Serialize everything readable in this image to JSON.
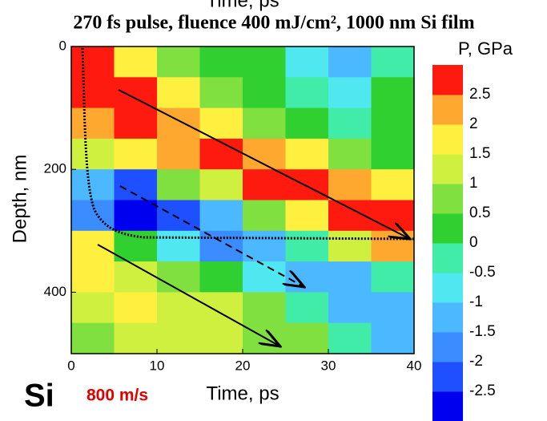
{
  "chart_data": {
    "type": "contour",
    "top_label": "Time, ps",
    "title": "270 fs pulse, fluence 400 mJ/cm², 1000 nm Si film",
    "x_label": "Time, ps",
    "y_label": "Depth, nm",
    "xlim": [
      0,
      40
    ],
    "xticks": [
      0,
      10,
      20,
      30,
      40
    ],
    "ylim": [
      0,
      500
    ],
    "yticks": [
      0,
      200,
      400
    ],
    "y_inverted": true,
    "x": [
      2.5,
      7.5,
      12.5,
      17.5,
      22.5,
      27.5,
      32.5,
      37.5
    ],
    "y": [
      25,
      75,
      125,
      175,
      225,
      275,
      325,
      375,
      425,
      475
    ],
    "z": [
      [
        2.8,
        1.5,
        0.5,
        0.3,
        0,
        -1,
        -1.5,
        -0.5
      ],
      [
        2.8,
        2.6,
        1.5,
        0.5,
        0,
        -0.5,
        -1,
        0
      ],
      [
        2.3,
        2.5,
        2.2,
        1.5,
        0.5,
        0,
        -0.3,
        0
      ],
      [
        1.2,
        1.5,
        2.0,
        2.6,
        2.3,
        1.5,
        0.5,
        0.3
      ],
      [
        -1.5,
        -2.2,
        0.5,
        1.2,
        2.6,
        2.7,
        2.3,
        1.5
      ],
      [
        -2.0,
        -2.6,
        -2.4,
        -1.5,
        0.5,
        1.5,
        2.7,
        2.8
      ],
      [
        1.5,
        0.3,
        -1.0,
        -1.8,
        -1.5,
        -0.5,
        1.0,
        2.2
      ],
      [
        1.5,
        1.2,
        0.8,
        0.3,
        -0.8,
        -1.5,
        -1.5,
        -0.5
      ],
      [
        1.2,
        1.5,
        1.2,
        1.0,
        0.5,
        -0.5,
        -1.5,
        -1.5
      ],
      [
        0.8,
        1.0,
        1.2,
        1.0,
        0.8,
        0.5,
        -0.5,
        -1.2
      ]
    ],
    "colorbar": {
      "title": "P, GPa",
      "levels": [
        -3,
        -2.5,
        -2,
        -1.5,
        -1,
        -0.5,
        0,
        0.5,
        1,
        1.5,
        2,
        2.5,
        3
      ],
      "colors": [
        "#0000f0",
        "#1e50ff",
        "#3a8cff",
        "#4cb8ff",
        "#50e8f0",
        "#40eca8",
        "#30d030",
        "#80e040",
        "#d0f040",
        "#fff040",
        "#ffa830",
        "#ff1a10"
      ],
      "ticks": [
        -2.5,
        -2,
        -1.5,
        -1,
        -0.5,
        0,
        0.5,
        1,
        1.5,
        2,
        2.5
      ]
    },
    "annotations": {
      "material": "Si",
      "speed": "800 m/s"
    }
  }
}
